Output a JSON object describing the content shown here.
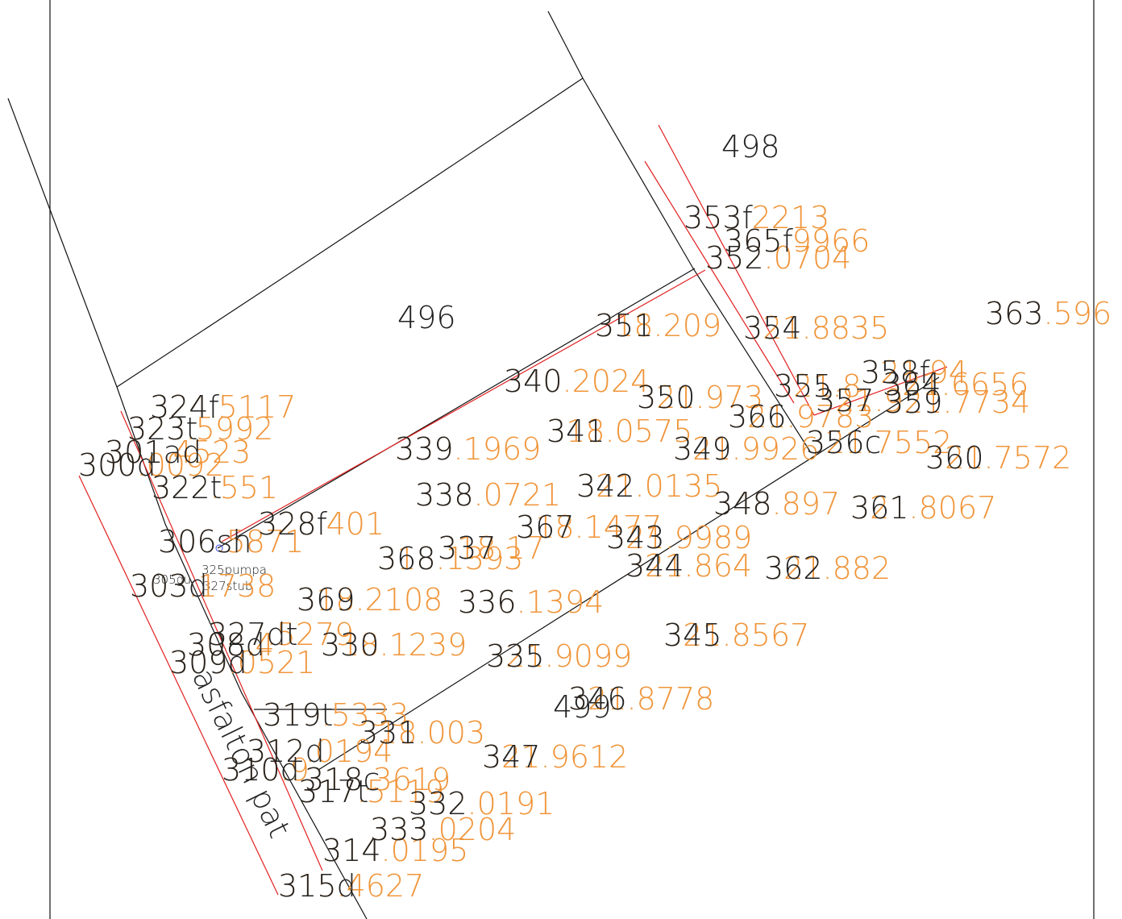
{
  "parcels": [
    "498",
    "496",
    "499"
  ],
  "points": [
    {
      "id": "353f",
      "elevation": "353.2213"
    },
    {
      "id": "365f",
      "elevation": "365.9966"
    },
    {
      "id": "352",
      "elevation": "352.0704"
    },
    {
      "id": "351",
      "elevation": "318.209"
    },
    {
      "id": "354",
      "elevation": "321.8835"
    },
    {
      "id": "363",
      "elevation": "363.596"
    },
    {
      "id": "340",
      "elevation": "340.2024"
    },
    {
      "id": "358f",
      "elevation": "321.94"
    },
    {
      "id": "350",
      "elevation": "321.973"
    },
    {
      "id": "355",
      "elevation": "321.8"
    },
    {
      "id": "364",
      "elevation": "321.6656"
    },
    {
      "id": "357",
      "elevation": "321.9"
    },
    {
      "id": "359",
      "elevation": "321.7734"
    },
    {
      "id": "366",
      "elevation": "321.9783"
    },
    {
      "id": "341",
      "elevation": "318.0575"
    },
    {
      "id": "349",
      "elevation": "321.9926"
    },
    {
      "id": "356c",
      "elevation": "321.7552"
    },
    {
      "id": "360",
      "elevation": "321.7572"
    },
    {
      "id": "339",
      "elevation": "339.1969"
    },
    {
      "id": "338",
      "elevation": "338.0721"
    },
    {
      "id": "342",
      "elevation": "321.0135"
    },
    {
      "id": "348",
      "elevation": "348.897"
    },
    {
      "id": "361",
      "elevation": "321.8067"
    },
    {
      "id": "367",
      "elevation": "318.1477"
    },
    {
      "id": "343",
      "elevation": "321.9989"
    },
    {
      "id": "368",
      "elevation": "318.1393"
    },
    {
      "id": "337",
      "elevation": "318.17"
    },
    {
      "id": "344",
      "elevation": "321.864"
    },
    {
      "id": "362",
      "elevation": "321.882"
    },
    {
      "id": "336",
      "elevation": "336.1394"
    },
    {
      "id": "369",
      "elevation": "318.2108"
    },
    {
      "id": "345",
      "elevation": "321.8567"
    },
    {
      "id": "335",
      "elevation": "321.9099"
    },
    {
      "id": "330",
      "elevation": "318.1239"
    },
    {
      "id": "346",
      "elevation": "321.8778"
    },
    {
      "id": "347",
      "elevation": "321.9612"
    },
    {
      "id": "331",
      "elevation": "318.003"
    },
    {
      "id": "332",
      "elevation": "332.0191"
    },
    {
      "id": "333",
      "elevation": "333.0204"
    },
    {
      "id": "324f",
      "elevation": "324.5117"
    },
    {
      "id": "323t",
      "elevation": "323.5992"
    },
    {
      "id": "301ad",
      "elevation": "301.4523"
    },
    {
      "id": "300d",
      "elevation": "300.0092"
    },
    {
      "id": "322t",
      "elevation": "322.551"
    },
    {
      "id": "328f",
      "elevation": "328.401"
    },
    {
      "id": "306sh",
      "elevation": "306.5871"
    },
    {
      "id": "303d",
      "elevation": "303.1738"
    },
    {
      "id": "327dt",
      "elevation": "327.5279"
    },
    {
      "id": "308d",
      "elevation": "308.4"
    },
    {
      "id": "309d",
      "elevation": "309.0521"
    },
    {
      "id": "319t",
      "elevation": "319.5333"
    },
    {
      "id": "312d",
      "elevation": "312.0194"
    },
    {
      "id": "310d",
      "elevation": "310.9"
    },
    {
      "id": "318c",
      "elevation": "318.3619"
    },
    {
      "id": "317t",
      "elevation": "317.5119"
    },
    {
      "id": "314",
      "elevation": "314.0195"
    },
    {
      "id": "315d",
      "elevation": "315.4627"
    }
  ],
  "small_labels": [
    "305gu",
    "325pumpa",
    "327stub"
  ],
  "road_label": "asfalton pat"
}
